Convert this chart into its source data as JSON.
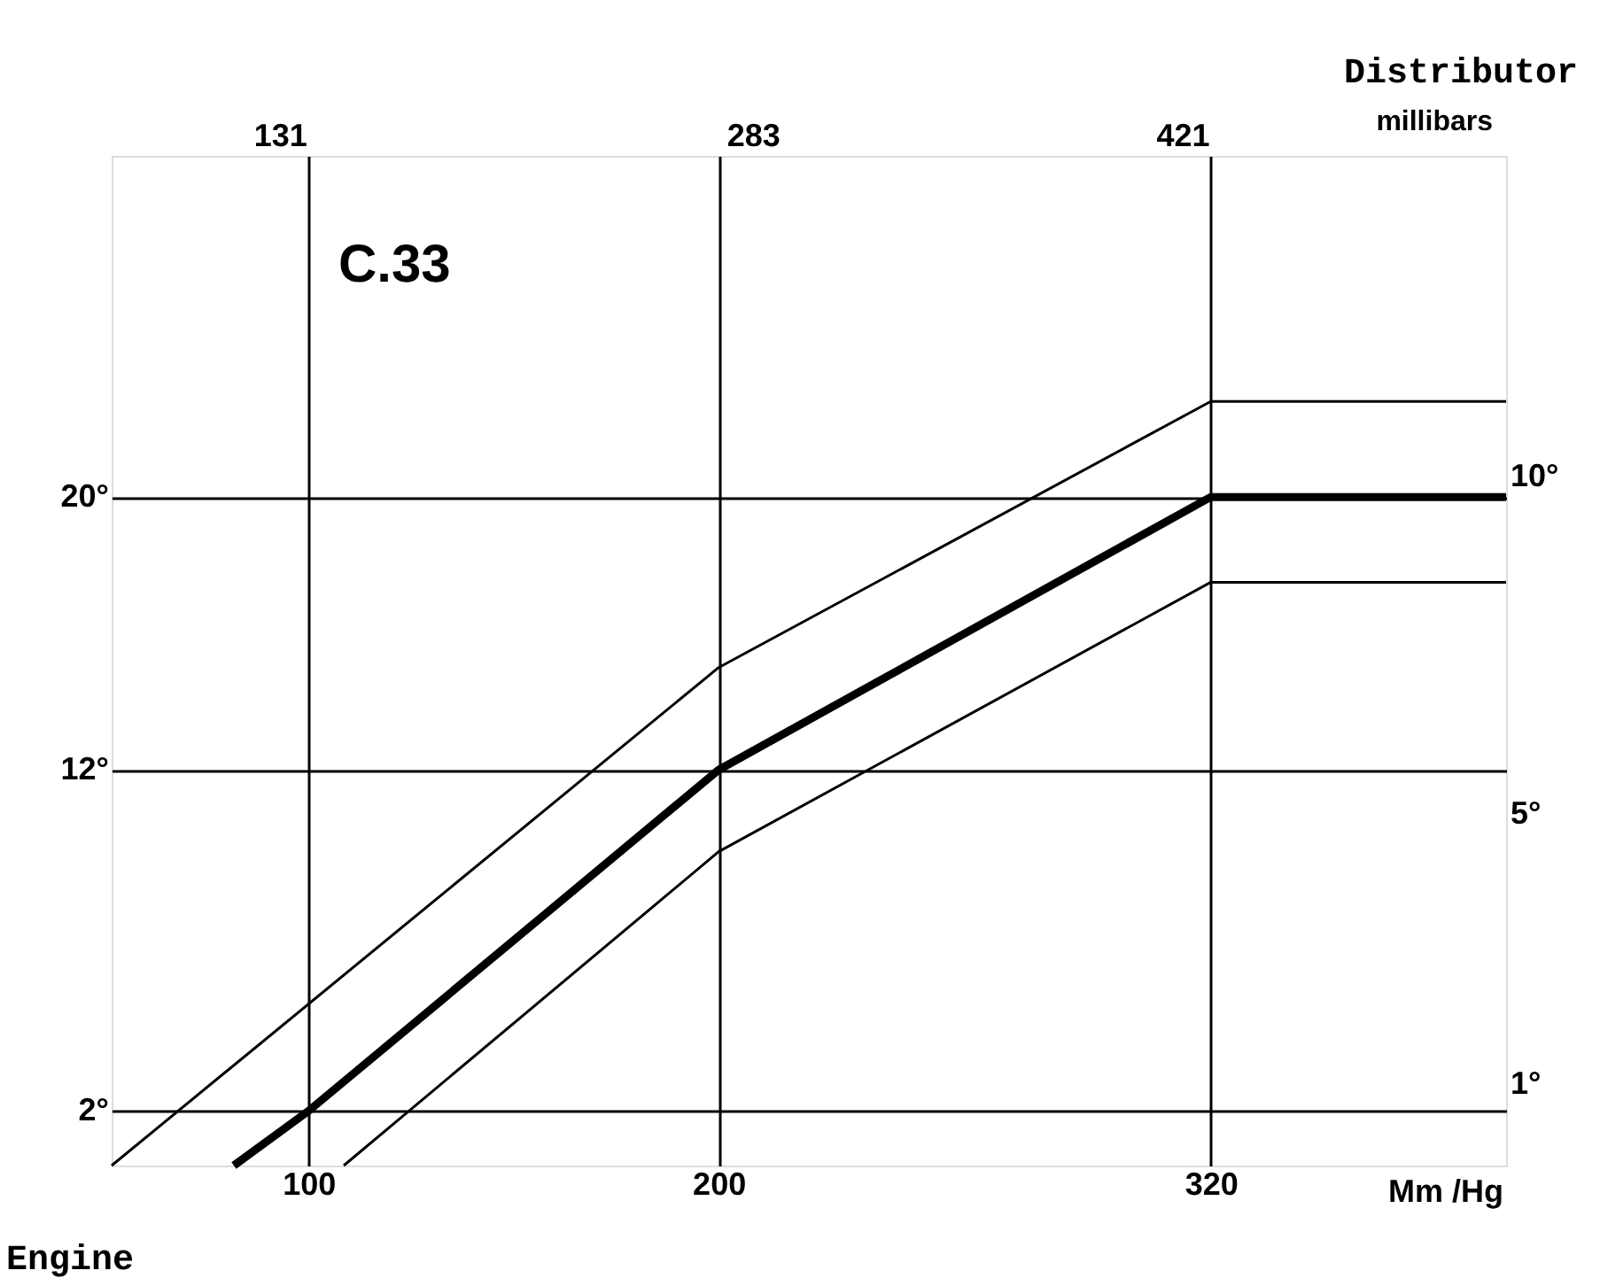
{
  "chart_data": {
    "type": "line",
    "title": "C.33",
    "xlabel": "Mm /Hg",
    "ylabel": "Engine",
    "x2label": "millibars",
    "y2label": "Distributor",
    "xlim": [
      52,
      392
    ],
    "xticks": [
      100,
      200,
      320
    ],
    "x2lim": [
      77,
      525
    ],
    "x2ticks": [
      131,
      283,
      421
    ],
    "ylim": [
      0.4,
      30
    ],
    "yticks": [
      {
        "value": 2,
        "label": "2°"
      },
      {
        "value": 12,
        "label": "12°"
      },
      {
        "value": 20,
        "label": "20°"
      }
    ],
    "y2lim": [
      -0.2,
      14.75
    ],
    "y2ticks": [
      {
        "value": 1,
        "label": "1°"
      },
      {
        "value": 5,
        "label": "5°"
      },
      {
        "value": 10,
        "label": "10°"
      }
    ],
    "grid": true,
    "marker": "none",
    "line_style": "solid",
    "series": [
      {
        "color": "#000000",
        "x": [
          52,
          200,
          320,
          392
        ],
        "values": [
          0.4,
          15.0,
          22.8,
          22.8
        ]
      },
      {
        "color": "#000000",
        "x": [
          81.8,
          100,
          200,
          320,
          392
        ],
        "values": [
          0.4,
          2,
          12,
          20,
          20
        ]
      },
      {
        "color": "#000000",
        "x": [
          108.6,
          200,
          320,
          392
        ],
        "values": [
          0.4,
          9.6,
          17.5,
          17.5
        ]
      }
    ]
  }
}
